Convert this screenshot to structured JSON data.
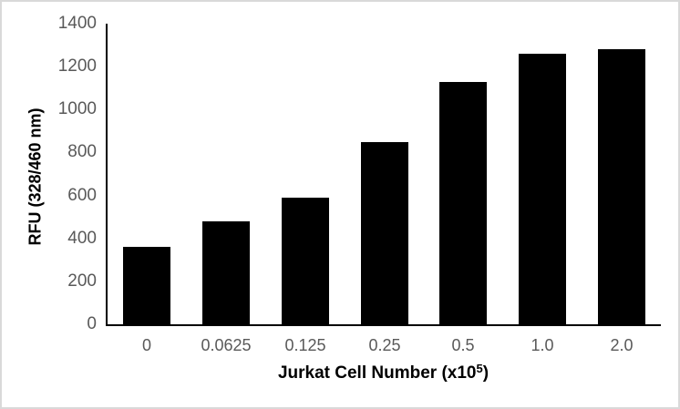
{
  "figure": {
    "background": "#ffffff",
    "border_color": "#d9d9d9"
  },
  "chart_data": {
    "type": "bar",
    "title": "",
    "categories": [
      "0",
      "0.0625",
      "0.125",
      "0.25",
      "0.5",
      "1.0",
      "2.0"
    ],
    "values": [
      360,
      480,
      590,
      850,
      1130,
      1260,
      1280
    ],
    "xlabel": "Jurkat Cell Number (x10⁵)",
    "xlabel_parts": {
      "main": "Jurkat Cell Number (x10",
      "sup": "5",
      "close": ")"
    },
    "ylabel": "RFU (328/460 nm)",
    "ylim": [
      0,
      1400
    ],
    "yticks": [
      0,
      200,
      400,
      600,
      800,
      1000,
      1200,
      1400
    ],
    "bar_color": "#000000",
    "axis_color": "#000000",
    "tick_label_color": "#595959",
    "grid": false,
    "legend_position": "none"
  }
}
